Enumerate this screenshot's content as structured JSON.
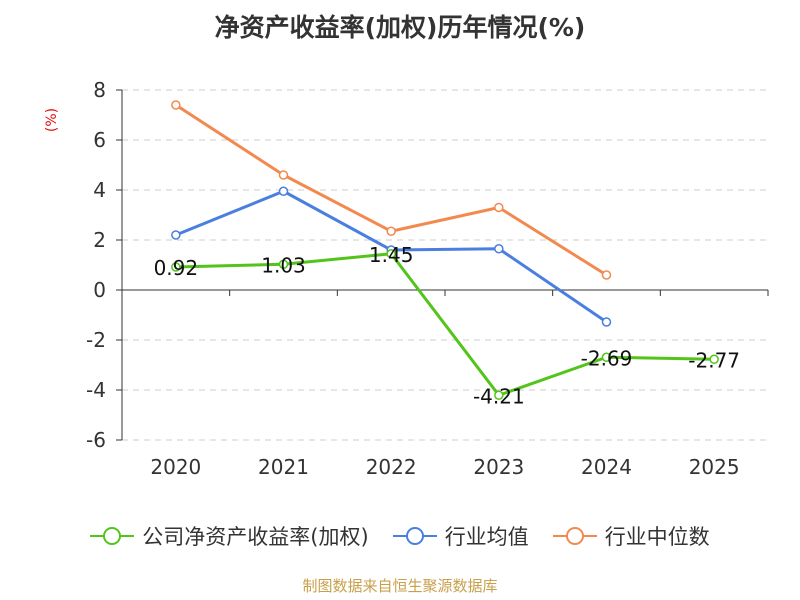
{
  "title": "净资产收益率(加权)历年情况(%)",
  "unit": "(%)",
  "source": "制图数据来自恒生聚源数据库",
  "colors": {
    "company": "#52c41a",
    "industry_avg": "#4a7fe0",
    "industry_median": "#f28a50",
    "grid": "#cccccc",
    "axis": "#333333"
  },
  "chart_data": {
    "type": "line",
    "title": "净资产收益率(加权)历年情况(%)",
    "ylabel": "(%)",
    "categories": [
      "2020",
      "2021",
      "2022",
      "2023",
      "2024",
      "2025"
    ],
    "ylim": [
      -6,
      8
    ],
    "yticks": [
      8,
      6,
      4,
      2,
      0,
      -2,
      -4,
      -6
    ],
    "series": [
      {
        "name": "公司净资产收益率(加权)",
        "key": "company",
        "values": [
          0.92,
          1.03,
          1.45,
          -4.21,
          -2.69,
          -2.77
        ],
        "labels": [
          "0.92",
          "1.03",
          "1.45",
          "-4.21",
          "-2.69",
          "-2.77"
        ]
      },
      {
        "name": "行业均值",
        "key": "industry_avg",
        "values": [
          2.2,
          3.95,
          1.6,
          1.65,
          -1.28,
          null
        ]
      },
      {
        "name": "行业中位数",
        "key": "industry_median",
        "values": [
          7.4,
          4.6,
          2.35,
          3.3,
          0.6,
          null
        ]
      }
    ]
  }
}
